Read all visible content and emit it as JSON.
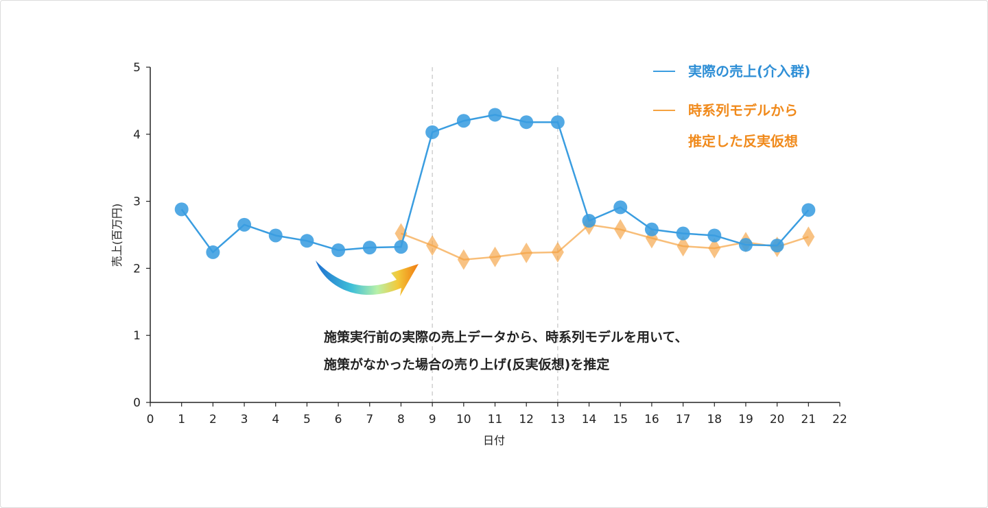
{
  "chart_data": {
    "type": "line",
    "xlabel": "日付",
    "ylabel": "売上(百万円)",
    "xlim": [
      0,
      22
    ],
    "ylim": [
      0,
      5
    ],
    "x_ticks": [
      "0",
      "1",
      "2",
      "3",
      "4",
      "5",
      "6",
      "7",
      "8",
      "9",
      "10",
      "11",
      "12",
      "13",
      "14",
      "15",
      "16",
      "17",
      "18",
      "19",
      "20",
      "21",
      "22"
    ],
    "y_ticks": [
      "0",
      "1",
      "2",
      "3",
      "4",
      "5"
    ],
    "vlines": [
      9,
      13
    ],
    "legend_position": "top-right",
    "series": [
      {
        "name": "実際の売上(介入群)",
        "color": "#3a9de0",
        "marker": "circle",
        "x": [
          1,
          2,
          3,
          4,
          5,
          6,
          7,
          8,
          9,
          10,
          11,
          12,
          13,
          14,
          15,
          16,
          17,
          18,
          19,
          20,
          21
        ],
        "y": [
          2.88,
          2.24,
          2.65,
          2.49,
          2.41,
          2.27,
          2.31,
          2.32,
          4.03,
          4.2,
          4.29,
          4.18,
          4.18,
          2.71,
          2.91,
          2.58,
          2.52,
          2.49,
          2.35,
          2.34,
          2.87
        ]
      },
      {
        "name": "時系列モデルから推定した反実仮想",
        "color": "#f5a240",
        "marker": "diamond",
        "x": [
          8,
          9,
          10,
          11,
          12,
          13,
          14,
          15,
          16,
          17,
          18,
          19,
          20,
          21
        ],
        "y": [
          2.52,
          2.34,
          2.13,
          2.17,
          2.23,
          2.24,
          2.65,
          2.58,
          2.45,
          2.33,
          2.3,
          2.39,
          2.32,
          2.47
        ]
      }
    ],
    "legend": {
      "line1": "実際の売上(介入群)",
      "line2a": "時系列モデルから",
      "line2b": "推定した反実仮想"
    },
    "annotation": {
      "line1": "施策実行前の実際の売上データから、時系列モデルを用いて、",
      "line2": "施策がなかった場合の売り上げ(反実仮想)を推定"
    }
  }
}
